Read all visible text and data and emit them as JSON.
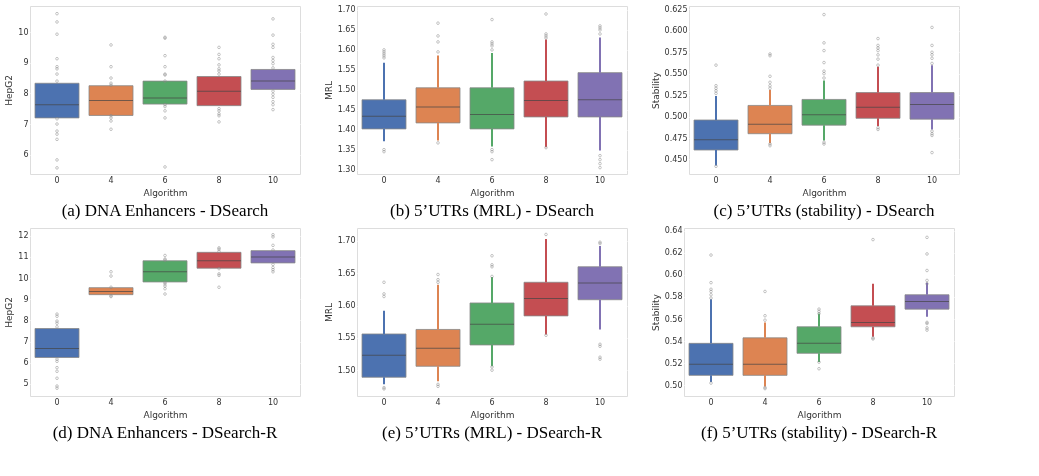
{
  "chart_data": [
    {
      "type": "box",
      "title": "(a) DNA Enhancers - DSearch",
      "xlabel": "Algorithm",
      "ylabel": "HepG2",
      "categories": [
        "0",
        "4",
        "6",
        "8",
        "10"
      ],
      "colors": [
        "#4c72b0",
        "#dd8452",
        "#55a868",
        "#c44e52",
        "#8172b3"
      ],
      "grid": "y",
      "ylim": [
        5.37,
        10.85
      ],
      "yticks": [
        6,
        7,
        8,
        9,
        10
      ],
      "boxes": [
        {
          "low": 7.2,
          "q1": 7.2,
          "median": 7.63,
          "q3": 8.33,
          "high": 8.33,
          "outliers": [
            10.6,
            10.33,
            9.93,
            9.13,
            8.87,
            8.8,
            8.63,
            8.4,
            7.17,
            7.0,
            6.77,
            6.67,
            6.5,
            5.83,
            5.57
          ]
        },
        {
          "low": 7.28,
          "q1": 7.28,
          "median": 7.77,
          "q3": 8.25,
          "high": 8.25,
          "outliers": [
            9.58,
            8.87,
            8.5,
            8.33,
            8.27,
            7.27,
            7.2,
            7.1,
            6.83
          ]
        },
        {
          "low": 7.65,
          "q1": 7.65,
          "median": 7.85,
          "q3": 8.4,
          "high": 8.4,
          "outliers": [
            9.83,
            9.8,
            9.23,
            8.87,
            8.63,
            8.6,
            8.4,
            7.63,
            7.57,
            7.43,
            7.2,
            5.6
          ]
        },
        {
          "low": 7.6,
          "q1": 7.6,
          "median": 8.07,
          "q3": 8.55,
          "high": 8.55,
          "outliers": [
            9.5,
            9.27,
            9.13,
            8.93,
            8.8,
            8.73,
            8.63,
            7.5,
            7.43,
            7.33,
            7.27,
            7.07
          ]
        },
        {
          "low": 8.13,
          "q1": 8.13,
          "median": 8.4,
          "q3": 8.78,
          "high": 8.78,
          "outliers": [
            10.43,
            9.9,
            9.6,
            9.5,
            9.17,
            9.07,
            8.97,
            8.83,
            8.07,
            7.97,
            7.87,
            7.73,
            7.63,
            7.47
          ]
        }
      ]
    },
    {
      "type": "box",
      "title": "(b) 5’UTRs (MRL) - DSearch",
      "xlabel": "Algorithm",
      "ylabel": "MRL",
      "categories": [
        "0",
        "4",
        "6",
        "8",
        "10"
      ],
      "colors": [
        "#4c72b0",
        "#dd8452",
        "#55a868",
        "#c44e52",
        "#8172b3"
      ],
      "grid": "y",
      "ylim": [
        1.289,
        1.71
      ],
      "yticks": [
        {
          "value": 1.3,
          "label": "1.30"
        },
        1.35,
        {
          "value": 1.4,
          "label": "1.40"
        },
        1.45,
        {
          "value": 1.5,
          "label": "1.50"
        },
        1.55,
        {
          "value": 1.6,
          "label": "1.60"
        },
        1.65,
        {
          "value": 1.7,
          "label": "1.70"
        }
      ],
      "boxes": [
        {
          "low": 1.371,
          "q1": 1.402,
          "median": 1.434,
          "q3": 1.475,
          "high": 1.568,
          "outliers": [
            1.6,
            1.595,
            1.59,
            1.585,
            1.58,
            1.35,
            1.345
          ]
        },
        {
          "low": 1.373,
          "q1": 1.417,
          "median": 1.457,
          "q3": 1.505,
          "high": 1.586,
          "outliers": [
            1.667,
            1.635,
            1.62,
            1.595,
            1.367
          ]
        },
        {
          "low": 1.358,
          "q1": 1.402,
          "median": 1.438,
          "q3": 1.505,
          "high": 1.592,
          "outliers": [
            1.676,
            1.62,
            1.615,
            1.61,
            1.6,
            1.35,
            1.345,
            1.325
          ]
        },
        {
          "low": 1.356,
          "q1": 1.432,
          "median": 1.473,
          "q3": 1.522,
          "high": 1.626,
          "outliers": [
            1.69,
            1.64,
            1.635,
            1.63,
            1.355
          ]
        },
        {
          "low": 1.348,
          "q1": 1.432,
          "median": 1.475,
          "q3": 1.543,
          "high": 1.631,
          "outliers": [
            1.66,
            1.655,
            1.65,
            1.64,
            1.335,
            1.325,
            1.315,
            1.305
          ]
        }
      ]
    },
    {
      "type": "box",
      "title": "(c) 5’UTRs (stability) - DSearch",
      "xlabel": "Algorithm",
      "ylabel": "Stability",
      "categories": [
        "0",
        "4",
        "6",
        "8",
        "10"
      ],
      "colors": [
        "#4c72b0",
        "#dd8452",
        "#55a868",
        "#c44e52",
        "#8172b3"
      ],
      "grid": "y",
      "ylim": [
        0.433,
        0.629
      ],
      "yticks": [
        {
          "value": 0.45,
          "label": "0.450"
        },
        0.475,
        {
          "value": 0.5,
          "label": "0.500"
        },
        0.525,
        {
          "value": 0.55,
          "label": "0.550"
        },
        0.575,
        {
          "value": 0.6,
          "label": "0.600"
        },
        0.625
      ],
      "boxes": [
        {
          "low": 0.443,
          "q1": 0.461,
          "median": 0.473,
          "q3": 0.496,
          "high": 0.524,
          "outliers": [
            0.56,
            0.536,
            0.533,
            0.53,
            0.527,
            0.442
          ]
        },
        {
          "low": 0.469,
          "q1": 0.48,
          "median": 0.491,
          "q3": 0.513,
          "high": 0.531,
          "outliers": [
            0.573,
            0.571,
            0.547,
            0.54,
            0.536,
            0.533,
            0.468,
            0.466
          ]
        },
        {
          "low": 0.472,
          "q1": 0.49,
          "median": 0.502,
          "q3": 0.52,
          "high": 0.542,
          "outliers": [
            0.619,
            0.586,
            0.577,
            0.563,
            0.553,
            0.55,
            0.545,
            0.47,
            0.468
          ]
        },
        {
          "low": 0.489,
          "q1": 0.498,
          "median": 0.511,
          "q3": 0.528,
          "high": 0.558,
          "outliers": [
            0.591,
            0.583,
            0.58,
            0.577,
            0.572,
            0.567,
            0.56,
            0.487,
            0.485
          ]
        },
        {
          "low": 0.485,
          "q1": 0.497,
          "median": 0.514,
          "q3": 0.528,
          "high": 0.56,
          "outliers": [
            0.604,
            0.583,
            0.575,
            0.572,
            0.568,
            0.562,
            0.483,
            0.48,
            0.478,
            0.458
          ]
        }
      ]
    },
    {
      "type": "box",
      "title": "(d) DNA Enhancers - DSearch-R",
      "xlabel": "Algorithm",
      "ylabel": "HepG2",
      "categories": [
        "0",
        "4",
        "6",
        "8",
        "10"
      ],
      "colors": [
        "#4c72b0",
        "#dd8452",
        "#55a868",
        "#c44e52",
        "#8172b3"
      ],
      "grid": "y",
      "ylim": [
        4.43,
        12.37
      ],
      "yticks": [
        5,
        6,
        7,
        8,
        9,
        10,
        11,
        12
      ],
      "boxes": [
        {
          "low": 6.25,
          "q1": 6.25,
          "median": 6.67,
          "q3": 7.62,
          "high": 7.62,
          "outliers": [
            8.3,
            8.2,
            7.97,
            7.87,
            7.7,
            6.17,
            6.07,
            5.77,
            5.6,
            5.27,
            4.9,
            4.8
          ]
        },
        {
          "low": 9.22,
          "q1": 9.22,
          "median": 9.37,
          "q3": 9.55,
          "high": 9.55,
          "outliers": [
            10.3,
            10.1,
            9.57,
            9.17,
            9.13
          ]
        },
        {
          "low": 9.82,
          "q1": 9.82,
          "median": 10.3,
          "q3": 10.82,
          "high": 10.82,
          "outliers": [
            11.07,
            10.9,
            10.85,
            9.8,
            9.73,
            9.63,
            9.5,
            9.25
          ]
        },
        {
          "low": 10.47,
          "q1": 10.47,
          "median": 10.82,
          "q3": 11.22,
          "high": 11.22,
          "outliers": [
            11.43,
            11.37,
            11.27,
            10.45,
            10.2,
            10.13,
            9.57
          ]
        },
        {
          "low": 10.72,
          "q1": 10.72,
          "median": 11.0,
          "q3": 11.3,
          "high": 11.3,
          "outliers": [
            12.05,
            11.95,
            11.55,
            11.33,
            10.65,
            10.5,
            10.4,
            10.3
          ]
        }
      ]
    },
    {
      "type": "box",
      "title": "(e) 5’UTRs (MRL) - DSearch-R",
      "xlabel": "Algorithm",
      "ylabel": "MRL",
      "categories": [
        "0",
        "4",
        "6",
        "8",
        "10"
      ],
      "colors": [
        "#4c72b0",
        "#dd8452",
        "#55a868",
        "#c44e52",
        "#8172b3"
      ],
      "grid": "y",
      "ylim": [
        1.46,
        1.72
      ],
      "yticks": [
        {
          "value": 1.5,
          "label": "1.50"
        },
        1.55,
        {
          "value": 1.6,
          "label": "1.60"
        },
        1.65,
        {
          "value": 1.7,
          "label": "1.70"
        }
      ],
      "boxes": [
        {
          "low": 1.478,
          "q1": 1.489,
          "median": 1.523,
          "q3": 1.556,
          "high": 1.592,
          "outliers": [
            1.636,
            1.618,
            1.614,
            1.473,
            1.471
          ]
        },
        {
          "low": 1.483,
          "q1": 1.506,
          "median": 1.534,
          "q3": 1.563,
          "high": 1.632,
          "outliers": [
            1.648,
            1.64,
            1.636,
            1.478,
            1.475
          ]
        },
        {
          "low": 1.506,
          "q1": 1.539,
          "median": 1.571,
          "q3": 1.604,
          "high": 1.644,
          "outliers": [
            1.677,
            1.663,
            1.66,
            1.645,
            1.505,
            1.5
          ]
        },
        {
          "low": 1.555,
          "q1": 1.584,
          "median": 1.611,
          "q3": 1.636,
          "high": 1.703,
          "outliers": [
            1.71,
            1.554
          ]
        },
        {
          "low": 1.563,
          "q1": 1.609,
          "median": 1.635,
          "q3": 1.66,
          "high": 1.692,
          "outliers": [
            1.698,
            1.696,
            1.54,
            1.537,
            1.52,
            1.517
          ]
        }
      ]
    },
    {
      "type": "box",
      "title": "(f) 5’UTRs (stability) - DSearch-R",
      "xlabel": "Algorithm",
      "ylabel": "Stability",
      "categories": [
        "0",
        "4",
        "6",
        "8",
        "10"
      ],
      "colors": [
        "#4c72b0",
        "#dd8452",
        "#55a868",
        "#c44e52",
        "#8172b3"
      ],
      "grid": "y",
      "ylim": [
        0.4903,
        0.6425
      ],
      "yticks": [
        {
          "value": 0.5,
          "label": "0.50"
        },
        0.52,
        0.54,
        0.56,
        0.58,
        {
          "value": 0.6,
          "label": "0.60"
        },
        0.62,
        0.64
      ],
      "boxes": [
        {
          "low": 0.503,
          "q1": 0.509,
          "median": 0.519,
          "q3": 0.538,
          "high": 0.578,
          "outliers": [
            0.618,
            0.593,
            0.587,
            0.585,
            0.582,
            0.579,
            0.502
          ]
        },
        {
          "low": 0.499,
          "q1": 0.509,
          "median": 0.519,
          "q3": 0.543,
          "high": 0.557,
          "outliers": [
            0.585,
            0.563,
            0.559,
            0.498,
            0.497
          ]
        },
        {
          "low": 0.521,
          "q1": 0.529,
          "median": 0.538,
          "q3": 0.553,
          "high": 0.565,
          "outliers": [
            0.569,
            0.567,
            0.565,
            0.521,
            0.515
          ]
        },
        {
          "low": 0.544,
          "q1": 0.553,
          "median": 0.557,
          "q3": 0.572,
          "high": 0.592,
          "outliers": [
            0.632,
            0.543,
            0.542
          ]
        },
        {
          "low": 0.562,
          "q1": 0.569,
          "median": 0.576,
          "q3": 0.582,
          "high": 0.593,
          "outliers": [
            0.634,
            0.619,
            0.604,
            0.595,
            0.592,
            0.557,
            0.556,
            0.552,
            0.55
          ]
        }
      ]
    }
  ]
}
